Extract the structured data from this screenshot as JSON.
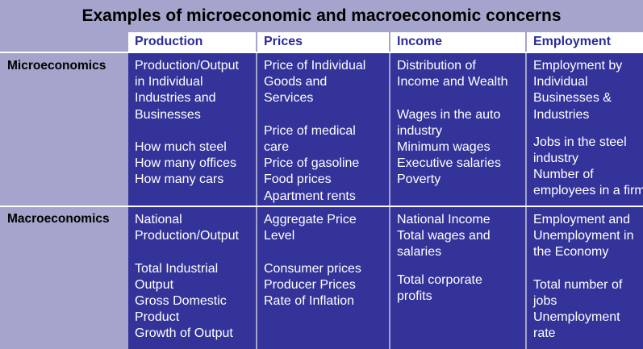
{
  "title": "Examples of microeconomic and macroeconomic concerns",
  "columns": [
    "Production",
    "Prices",
    "Income",
    "Employment"
  ],
  "rows": [
    {
      "label": "Microeconomics",
      "cells": [
        [
          "Production/Output",
          "in Individual",
          "Industries and",
          "Businesses",
          "",
          "How much steel",
          "How many offices",
          "How many cars"
        ],
        [
          "Price of Individual",
          "Goods and",
          "Services",
          "",
          "Price of medical",
          "care",
          "Price of gasoline",
          "Food prices",
          "Apartment rents"
        ],
        [
          "Distribution of",
          "Income and Wealth",
          "",
          "Wages in the auto",
          "industry",
          "Minimum wages",
          "Executive salaries",
          "Poverty"
        ],
        [
          "Employment by",
          "Individual",
          "Businesses &",
          "Industries",
          "",
          "Jobs in the steel",
          "industry",
          "Number of",
          "employees in a firm"
        ]
      ]
    },
    {
      "label": "Macroeconomics",
      "cells": [
        [
          "National",
          "Production/Output",
          "",
          "Total Industrial",
          "Output",
          "Gross Domestic",
          "Product",
          "Growth of Output"
        ],
        [
          "Aggregate Price",
          "Level",
          "",
          "Consumer prices",
          "Producer Prices",
          "Rate of Inflation"
        ],
        [
          "National Income",
          "Total wages and",
          "salaries",
          "",
          "Total corporate",
          "profits"
        ],
        [
          "Employment and",
          "Unemployment in",
          "the Economy",
          "",
          "Total number of",
          "jobs",
          "Unemployment",
          "rate"
        ]
      ]
    }
  ]
}
